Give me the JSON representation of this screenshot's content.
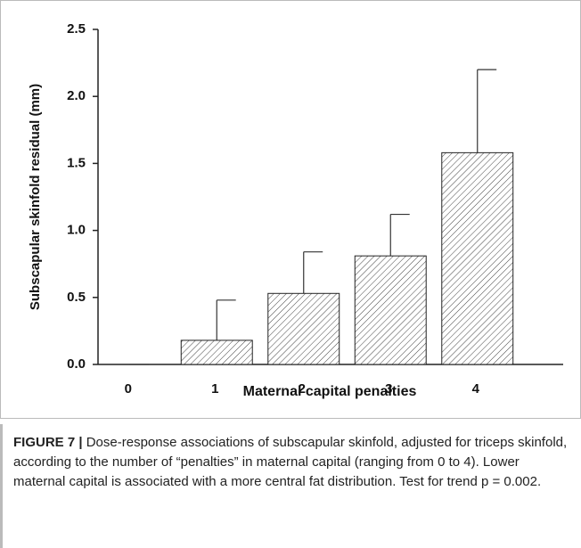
{
  "chart_data": {
    "type": "bar",
    "ylabel": "Subscapular skinfold residual (mm)",
    "xlabel": "Maternal capital penalties",
    "categories": [
      "0",
      "1",
      "2",
      "3",
      "4"
    ],
    "values": [
      0,
      0.18,
      0.53,
      0.81,
      1.58
    ],
    "errors": [
      0,
      0.3,
      0.31,
      0.31,
      0.62
    ],
    "color": "#ffffff",
    "ylim": [
      0,
      2.5
    ],
    "yticks": [
      {
        "value": 0,
        "label": "0.0"
      },
      {
        "value": 0.5,
        "label": "0.5"
      },
      {
        "value": 1,
        "label": "1.0"
      },
      {
        "value": 1.5,
        "label": "1.5"
      },
      {
        "value": 2,
        "label": "2.0"
      },
      {
        "value": 2.5,
        "label": "2.5"
      }
    ]
  },
  "caption": {
    "label": "FIGURE 7 |",
    "text": "Dose-response associations of subscapular skinfold, adjusted for triceps skinfold, according to the number of “penalties” in maternal capital (ranging from 0 to 4). Lower maternal capital is associated with a more central fat distribution. Test for trend p = 0.002."
  }
}
